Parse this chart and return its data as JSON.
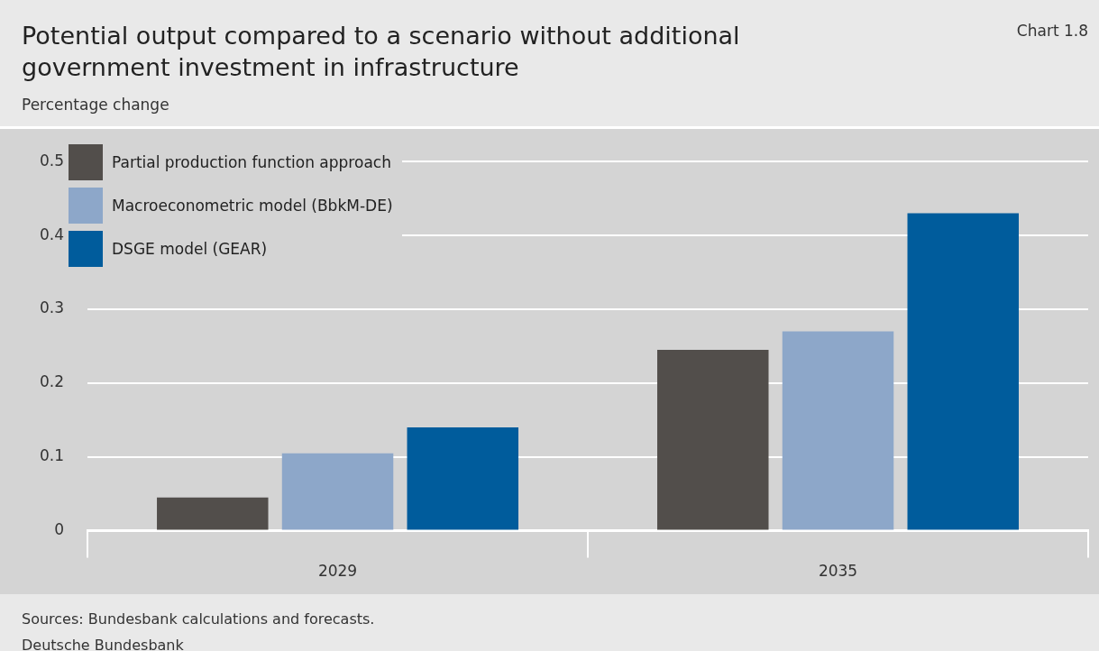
{
  "chart_data": {
    "type": "bar",
    "title": "Potential output compared to a scenario without additional government investment in infrastructure",
    "ylabel": "Percentage change",
    "annotations": [
      "Chart 1.8",
      "Sources: Bundesbank calculations and forecasts.",
      "Deutsche Bundesbank"
    ],
    "categories": [
      "2029",
      "2035"
    ],
    "series": [
      {
        "name": "Partial production function approach",
        "color": "#524e4b",
        "values": [
          0.045,
          0.245
        ]
      },
      {
        "name": "Macroeconometric model (BbkM-DE)",
        "color": "#8da7c9",
        "values": [
          0.105,
          0.27
        ]
      },
      {
        "name": "DSGE model (GEAR)",
        "color": "#005c9c",
        "values": [
          0.14,
          0.43
        ]
      }
    ],
    "ylim": [
      0,
      0.5
    ],
    "yticks": [
      0,
      0.1,
      0.2,
      0.3,
      0.4,
      0.5
    ],
    "grid": "y",
    "legend": "top left"
  }
}
